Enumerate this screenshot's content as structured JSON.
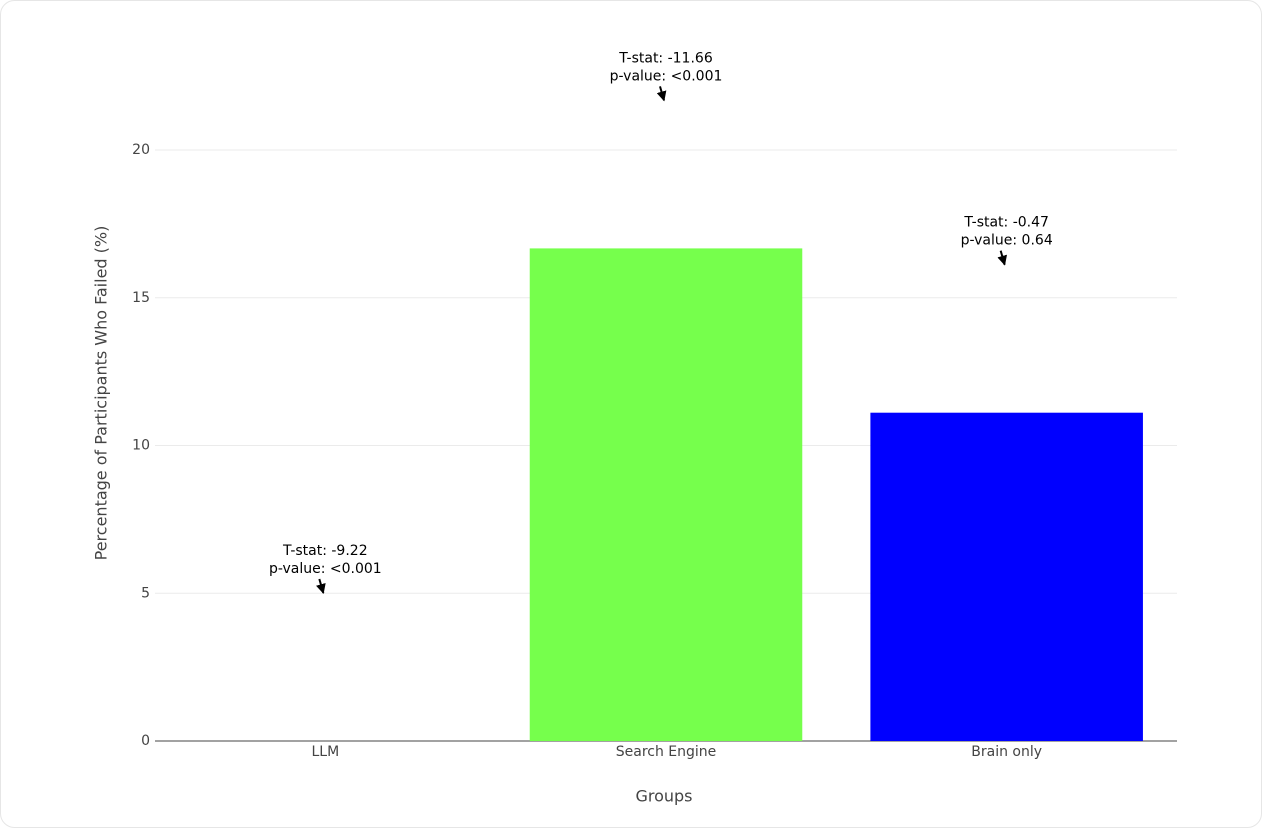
{
  "chart_data": {
    "type": "bar",
    "xlabel": "Groups",
    "ylabel": "Percentage of Participants Who Failed (%)",
    "categories": [
      "LLM",
      "Search Engine",
      "Brain only"
    ],
    "values": [
      0,
      16.67,
      11.11
    ],
    "colors": [
      "#76ff4c",
      "#76ff4c",
      "#0000ff"
    ],
    "annotations": [
      [
        "T-stat: -9.22",
        "p-value: <0.001"
      ],
      [
        "T-stat: -11.66",
        "p-value: <0.001"
      ],
      [
        "T-stat: -0.47",
        "p-value: 0.64"
      ]
    ],
    "ylim": [
      0,
      22
    ],
    "yticks": [
      0,
      5,
      10,
      15,
      20
    ],
    "grid": true
  }
}
